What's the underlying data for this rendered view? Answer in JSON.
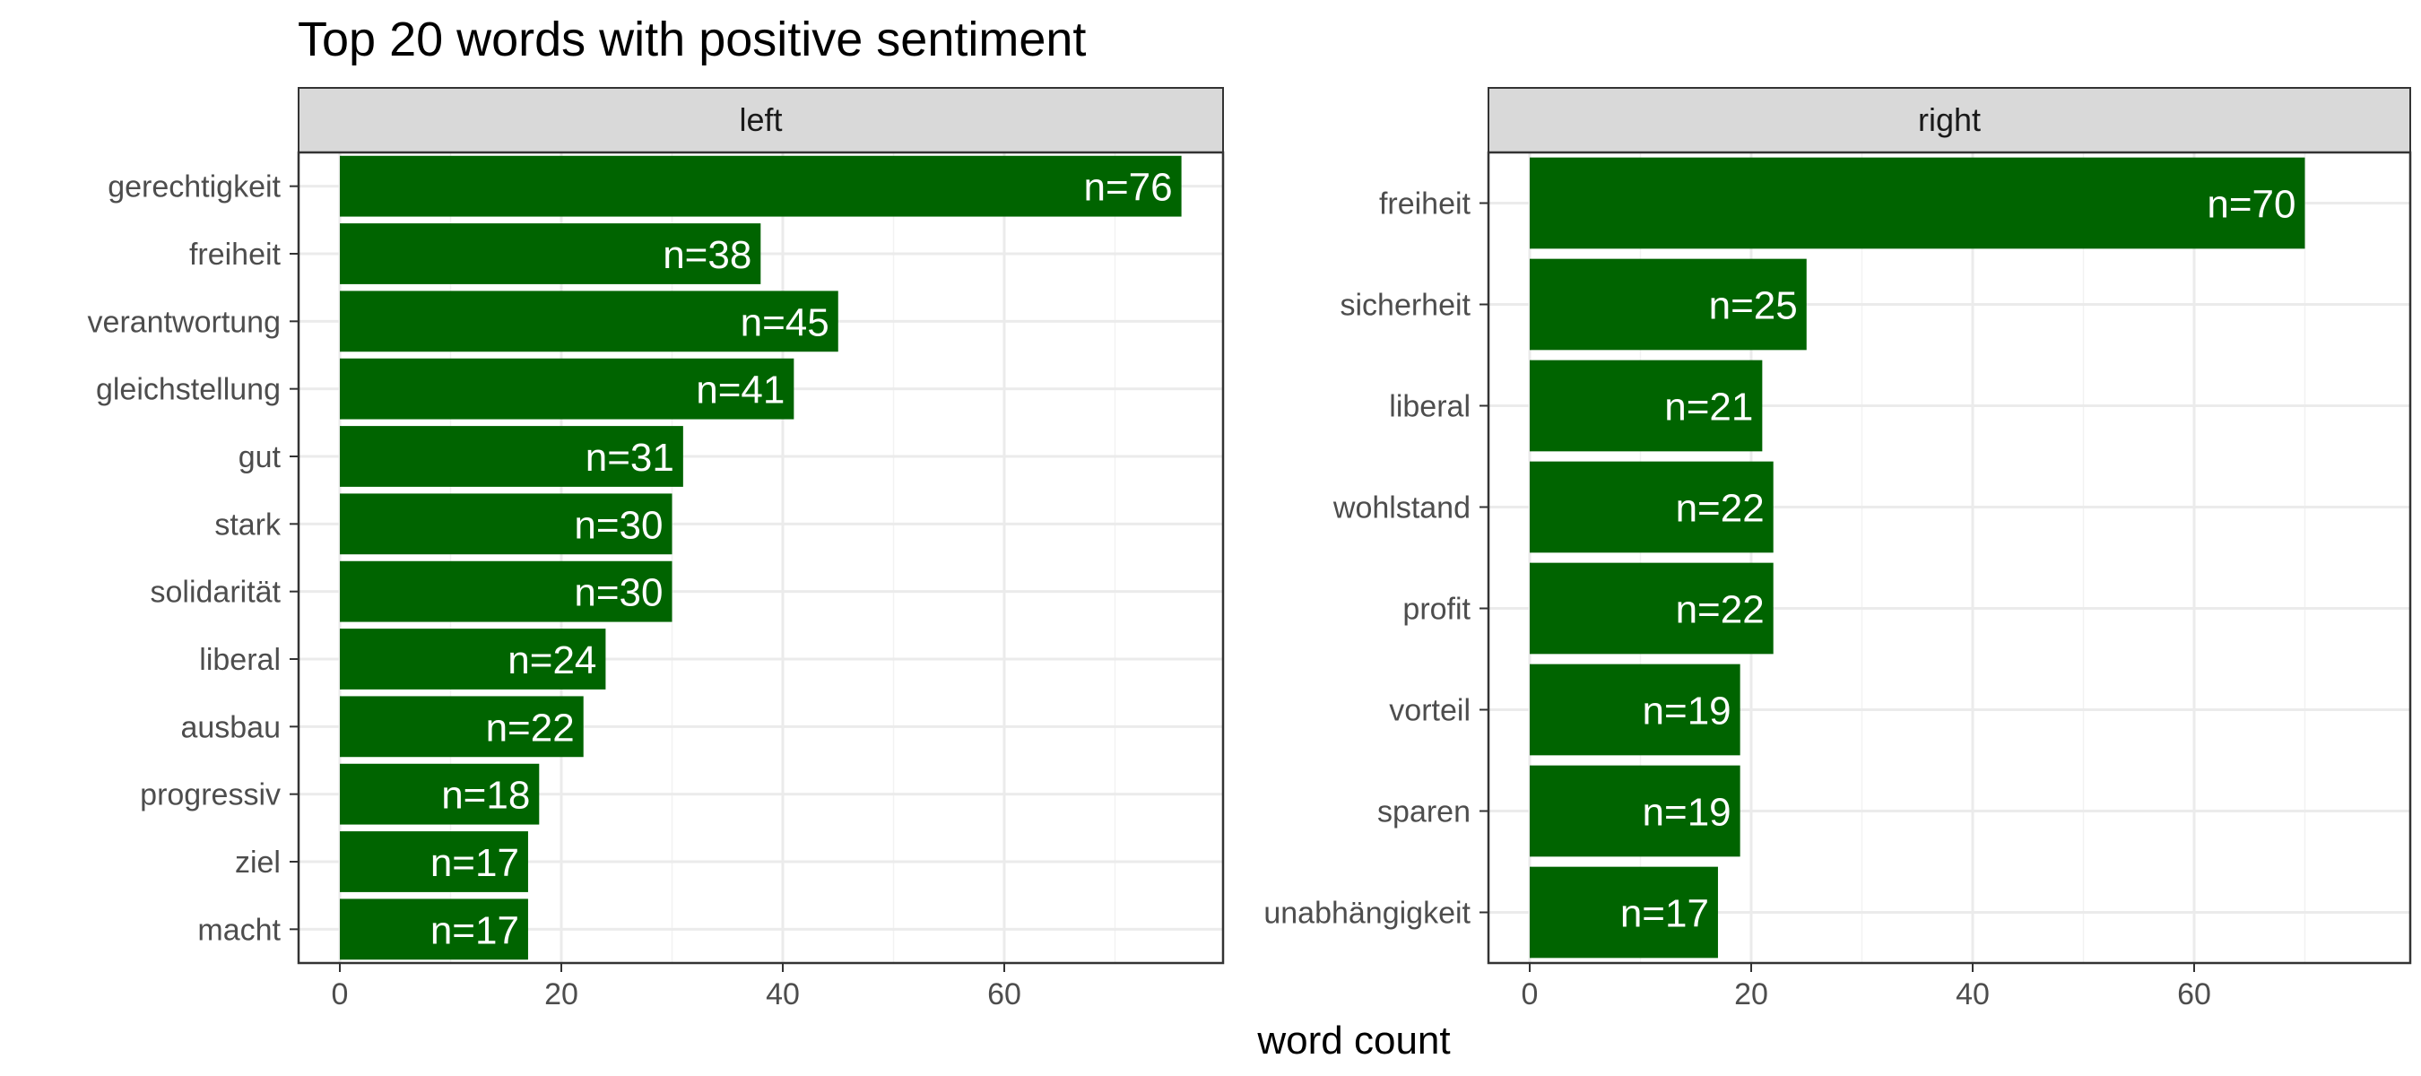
{
  "chart_data": {
    "type": "bar",
    "orientation": "horizontal",
    "title": "Top 20 words with positive sentiment",
    "xlabel": "word count",
    "ylabel": "",
    "xlim": [
      0,
      80
    ],
    "x_ticks": [
      0,
      20,
      40,
      60
    ],
    "grid": true,
    "bar_color": "#006400",
    "label_prefix": "n=",
    "panels": [
      {
        "facet": "left",
        "categories": [
          "gerechtigkeit",
          "freiheit",
          "verantwortung",
          "gleichstellung",
          "gut",
          "stark",
          "solidarität",
          "liberal",
          "ausbau",
          "progressiv",
          "ziel",
          "macht"
        ],
        "values": [
          76,
          38,
          45,
          41,
          31,
          30,
          30,
          24,
          22,
          18,
          17,
          17
        ]
      },
      {
        "facet": "right",
        "categories": [
          "freiheit",
          "sicherheit",
          "liberal",
          "wohlstand",
          "profit",
          "vorteil",
          "sparen",
          "unabhängigkeit"
        ],
        "values": [
          70,
          25,
          21,
          22,
          22,
          19,
          19,
          17
        ]
      }
    ]
  }
}
